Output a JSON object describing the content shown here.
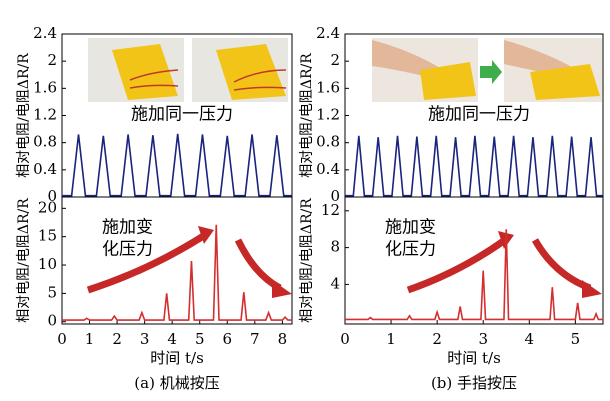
{
  "chart_data": [
    {
      "type": "line",
      "ylabel": "相对电阻/电阻ΔR/R",
      "annotation": "施加同一压力",
      "xlim": [
        0,
        8.35
      ],
      "ylim": [
        0,
        2.4
      ],
      "yticks": [
        0,
        0.4,
        0.8,
        1.2,
        1.6,
        2.0,
        2.4
      ],
      "series": [
        {
          "color": "#1a237e",
          "x": [
            0,
            0.35,
            0.6,
            0.85,
            1.25,
            1.5,
            1.75,
            2.15,
            2.4,
            2.65,
            3.05,
            3.3,
            3.55,
            3.95,
            4.2,
            4.45,
            4.85,
            5.1,
            5.35,
            5.75,
            6.0,
            6.25,
            6.65,
            6.9,
            7.15,
            7.55,
            7.8,
            8.05,
            8.35
          ],
          "values": [
            0.02,
            0.02,
            0.92,
            0.02,
            0.02,
            0.9,
            0.02,
            0.02,
            0.92,
            0.02,
            0.02,
            0.91,
            0.02,
            0.02,
            0.93,
            0.02,
            0.02,
            0.92,
            0.02,
            0.02,
            0.9,
            0.02,
            0.02,
            0.92,
            0.02,
            0.02,
            0.91,
            0.02,
            0.02
          ]
        }
      ]
    },
    {
      "type": "line",
      "ylabel": "相对电阻/电阻ΔR/R",
      "annotation": [
        "施加变",
        "化压力"
      ],
      "xlabel": "时间 t/s",
      "caption": "(a) 机械按压",
      "xlim": [
        0,
        8.35
      ],
      "xticks": [
        0,
        1,
        2,
        3,
        4,
        5,
        6,
        7,
        8
      ],
      "ylim": [
        -0.4,
        22
      ],
      "yticks": [
        0,
        5,
        10,
        15,
        20
      ],
      "series": [
        {
          "color": "#d32f2f",
          "x": [
            0,
            0.8,
            0.9,
            1.0,
            1.8,
            1.9,
            2.0,
            2.8,
            2.9,
            3.0,
            3.7,
            3.8,
            3.9,
            4.6,
            4.7,
            4.8,
            5.5,
            5.6,
            5.7,
            6.5,
            6.6,
            6.7,
            7.4,
            7.5,
            7.6,
            8.0,
            8.1,
            8.2,
            8.35
          ],
          "values": [
            0.3,
            0.3,
            0.6,
            0.3,
            0.3,
            1.0,
            0.3,
            0.3,
            1.6,
            0.3,
            0.3,
            5.0,
            0.3,
            0.3,
            10.7,
            0.3,
            0.3,
            17.1,
            0.3,
            0.3,
            5.2,
            0.3,
            0.3,
            1.6,
            0.3,
            0.3,
            0.8,
            0.3,
            0.3
          ]
        }
      ]
    },
    {
      "type": "line",
      "ylabel": "相对电阻/电阻ΔR/R",
      "annotation": "施加同一压力",
      "xlim": [
        0,
        5.6
      ],
      "ylim": [
        0,
        2.4
      ],
      "yticks": [
        0,
        0.4,
        0.8,
        1.2,
        1.6,
        2.0,
        2.4
      ],
      "series": [
        {
          "color": "#1a237e",
          "x": [
            0,
            0.18,
            0.3,
            0.42,
            0.6,
            0.72,
            0.84,
            1.02,
            1.14,
            1.26,
            1.44,
            1.56,
            1.68,
            1.86,
            1.98,
            2.1,
            2.28,
            2.4,
            2.52,
            2.7,
            2.82,
            2.94,
            3.12,
            3.24,
            3.36,
            3.54,
            3.66,
            3.78,
            3.96,
            4.08,
            4.2,
            4.38,
            4.5,
            4.62,
            4.8,
            4.92,
            5.04,
            5.22,
            5.34,
            5.46,
            5.6
          ],
          "values": [
            0.02,
            0.02,
            0.9,
            0.02,
            0.02,
            0.88,
            0.02,
            0.02,
            0.9,
            0.02,
            0.02,
            0.89,
            0.02,
            0.02,
            0.9,
            0.02,
            0.02,
            0.88,
            0.02,
            0.02,
            0.9,
            0.02,
            0.02,
            0.89,
            0.02,
            0.02,
            0.9,
            0.02,
            0.02,
            0.88,
            0.02,
            0.02,
            0.9,
            0.02,
            0.02,
            0.89,
            0.02,
            0.02,
            0.88,
            0.02,
            0.02
          ]
        }
      ]
    },
    {
      "type": "line",
      "ylabel": "相对电阻/电阻ΔR/R",
      "annotation": [
        "施加变",
        "化压力"
      ],
      "xlabel": "时间 t/s",
      "caption": "(b) 手指按压",
      "xlim": [
        0,
        5.6
      ],
      "xticks": [
        0,
        1,
        2,
        3,
        4,
        5
      ],
      "ylim": [
        -0.3,
        13.5
      ],
      "yticks": [
        4,
        8,
        12
      ],
      "series": [
        {
          "color": "#d32f2f",
          "x": [
            0,
            0.5,
            0.55,
            0.6,
            1.35,
            1.4,
            1.45,
            1.95,
            2.0,
            2.05,
            2.45,
            2.5,
            2.55,
            2.95,
            3.0,
            3.05,
            3.45,
            3.5,
            3.55,
            4.45,
            4.5,
            4.55,
            5.0,
            5.05,
            5.1,
            5.4,
            5.45,
            5.5,
            5.6
          ],
          "values": [
            0.2,
            0.2,
            0.4,
            0.2,
            0.2,
            0.6,
            0.2,
            0.2,
            1.0,
            0.2,
            0.2,
            1.6,
            0.2,
            0.2,
            5.5,
            0.2,
            0.2,
            10.0,
            0.2,
            0.2,
            3.7,
            0.2,
            0.2,
            2.0,
            0.2,
            0.2,
            0.8,
            0.2,
            0.2
          ]
        }
      ]
    }
  ]
}
